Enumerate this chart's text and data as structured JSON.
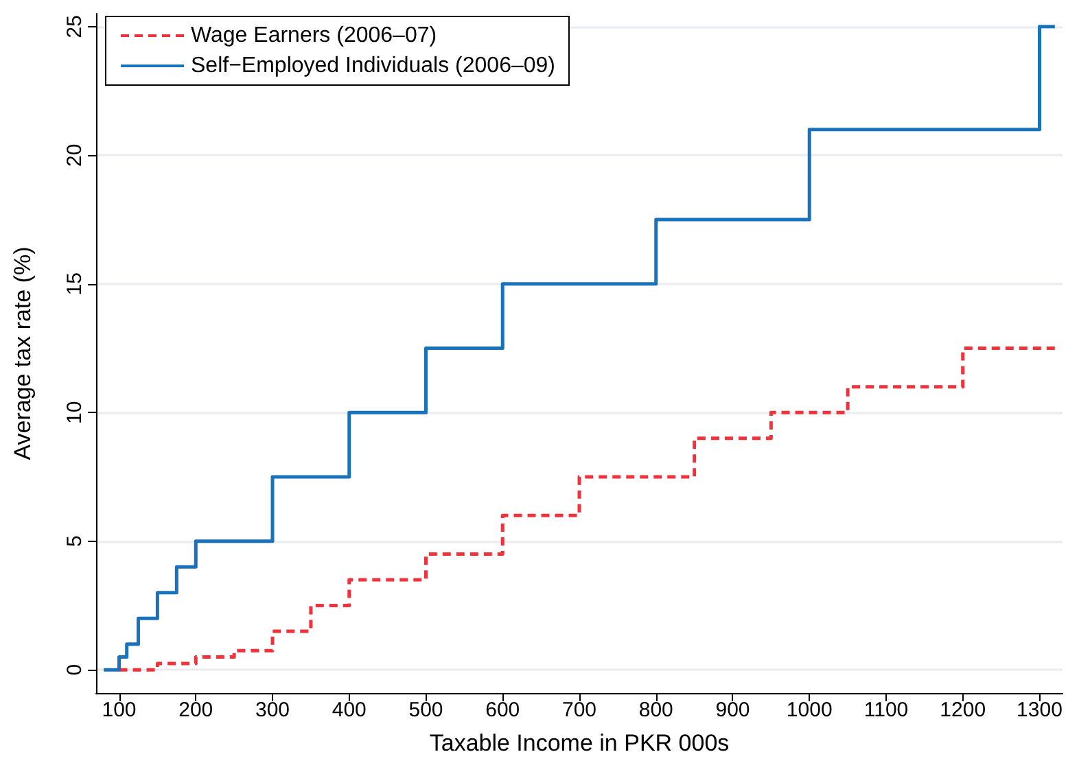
{
  "chart_data": {
    "type": "step",
    "xlabel": "Taxable Income in PKR 000s",
    "ylabel": "Average tax rate (%)",
    "series": [
      {
        "name": "Wage Earners (2006–07)",
        "color": "#f0323c",
        "line_style": "dashed",
        "x": [
          100,
          150,
          200,
          250,
          300,
          350,
          400,
          500,
          600,
          700,
          850,
          950,
          1050,
          1200,
          1320
        ],
        "values": [
          0,
          0.25,
          0.5,
          0.75,
          1.5,
          2.5,
          3.5,
          4.5,
          6,
          7.5,
          9,
          10,
          11,
          12.5,
          12.5
        ]
      },
      {
        "name": "Self−Employed Individuals (2006–09)",
        "color": "#1a72bb",
        "line_style": "solid",
        "x": [
          80,
          100,
          110,
          125,
          150,
          175,
          200,
          300,
          400,
          500,
          600,
          800,
          1000,
          1300,
          1320
        ],
        "values": [
          0,
          0.5,
          1,
          2,
          3,
          4,
          5,
          7.5,
          10,
          12.5,
          15,
          17.5,
          21,
          25,
          25
        ]
      }
    ],
    "xlim": [
      70,
      1330
    ],
    "ylim": [
      -0.9,
      25.5
    ],
    "xticks": [
      100,
      200,
      300,
      400,
      500,
      600,
      700,
      800,
      900,
      1000,
      1100,
      1200,
      1300
    ],
    "yticks": [
      0,
      5,
      10,
      15,
      20,
      25
    ],
    "grid": "y",
    "legend": "top left",
    "marker": "none"
  }
}
